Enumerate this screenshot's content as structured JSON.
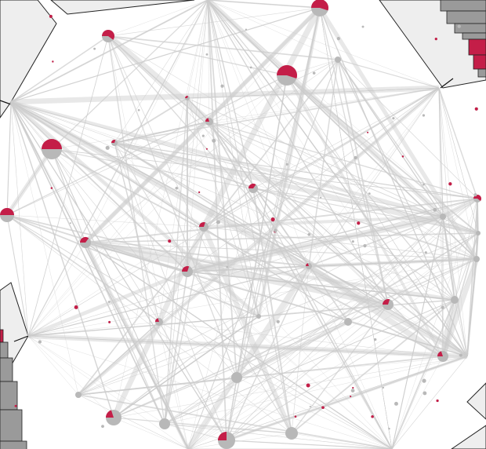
{
  "colors": {
    "background": "#ffffff",
    "panel_fill": "#eeeeee",
    "panel_stroke": "#222222",
    "edge": "#cccccc",
    "node_base": "#b8b8b8",
    "node_accent": "#c41e48",
    "bar_fill": "#9a9a9a"
  },
  "legend": [],
  "title": ""
}
